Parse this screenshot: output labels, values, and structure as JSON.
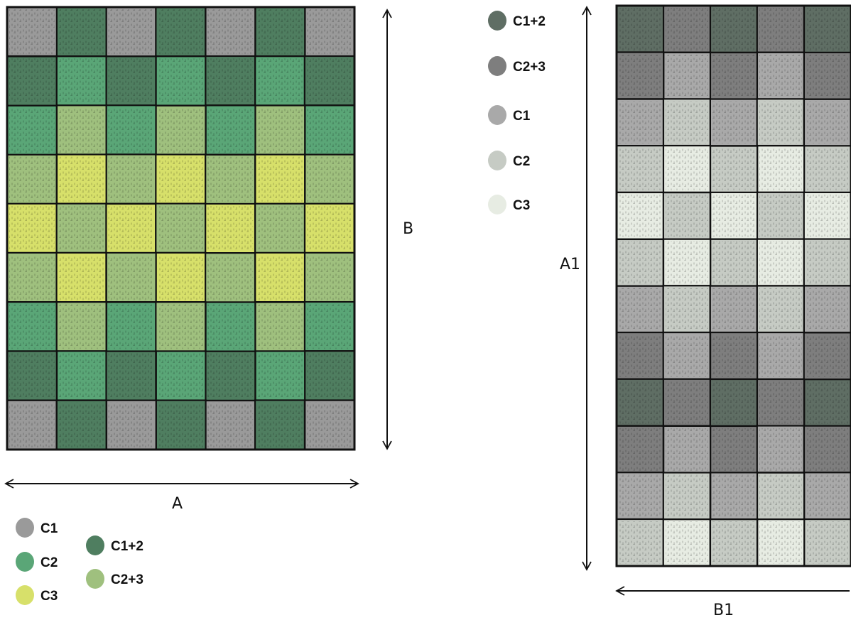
{
  "colors": {
    "C1": "#9a9a9a",
    "C2": "#5aa677",
    "C3": "#d7e06a",
    "C1+2": "#4f7e60",
    "C2+3": "#9fc07e",
    "g_C1+2": "#5f6e64",
    "g_C2+3": "#7e7e7e",
    "g_C1": "#a9a9a9",
    "g_C2": "#c6cbc4",
    "g_C3": "#e7ece3"
  },
  "quilt_a": {
    "rows": [
      [
        "C1",
        "C1+2",
        "C1",
        "C1+2",
        "C1",
        "C1+2",
        "C1"
      ],
      [
        "C1+2",
        "C2",
        "C1+2",
        "C2",
        "C1+2",
        "C2",
        "C1+2"
      ],
      [
        "C2",
        "C2+3",
        "C2",
        "C2+3",
        "C2",
        "C2+3",
        "C2"
      ],
      [
        "C2+3",
        "C3",
        "C2+3",
        "C3",
        "C2+3",
        "C3",
        "C2+3"
      ],
      [
        "C3",
        "C2+3",
        "C3",
        "C2+3",
        "C3",
        "C2+3",
        "C3"
      ],
      [
        "C2+3",
        "C3",
        "C2+3",
        "C3",
        "C2+3",
        "C3",
        "C2+3"
      ],
      [
        "C2",
        "C2+3",
        "C2",
        "C2+3",
        "C2",
        "C2+3",
        "C2"
      ],
      [
        "C1+2",
        "C2",
        "C1+2",
        "C2",
        "C1+2",
        "C2",
        "C1+2"
      ],
      [
        "C1",
        "C1+2",
        "C1",
        "C1+2",
        "C1",
        "C1+2",
        "C1"
      ]
    ],
    "width_label": "A",
    "height_label": "B"
  },
  "legend_a": [
    {
      "label": "C1",
      "color_key": "C1"
    },
    {
      "label": "C2",
      "color_key": "C2"
    },
    {
      "label": "C3",
      "color_key": "C3"
    },
    {
      "label": "C1+2",
      "color_key": "C1+2"
    },
    {
      "label": "C2+3",
      "color_key": "C2+3"
    }
  ],
  "quilt_b": {
    "rows": [
      [
        "g_C1+2",
        "g_C2+3",
        "g_C1+2",
        "g_C2+3",
        "g_C1+2"
      ],
      [
        "g_C2+3",
        "g_C1",
        "g_C2+3",
        "g_C1",
        "g_C2+3"
      ],
      [
        "g_C1",
        "g_C2",
        "g_C1",
        "g_C2",
        "g_C1"
      ],
      [
        "g_C2",
        "g_C3",
        "g_C2",
        "g_C3",
        "g_C2"
      ],
      [
        "g_C3",
        "g_C2",
        "g_C3",
        "g_C2",
        "g_C3"
      ],
      [
        "g_C2",
        "g_C3",
        "g_C2",
        "g_C3",
        "g_C2"
      ],
      [
        "g_C1",
        "g_C2",
        "g_C1",
        "g_C2",
        "g_C1"
      ],
      [
        "g_C2+3",
        "g_C1",
        "g_C2+3",
        "g_C1",
        "g_C2+3"
      ],
      [
        "g_C1+2",
        "g_C2+3",
        "g_C1+2",
        "g_C2+3",
        "g_C1+2"
      ],
      [
        "g_C2+3",
        "g_C1",
        "g_C2+3",
        "g_C1",
        "g_C2+3"
      ],
      [
        "g_C1",
        "g_C2",
        "g_C1",
        "g_C2",
        "g_C1"
      ],
      [
        "g_C2",
        "g_C3",
        "g_C2",
        "g_C3",
        "g_C2"
      ]
    ],
    "width_label": "B1",
    "height_label": "A1"
  },
  "legend_b": [
    {
      "label": "C1+2",
      "color_key": "g_C1+2"
    },
    {
      "label": "C2+3",
      "color_key": "g_C2+3"
    },
    {
      "label": "C1",
      "color_key": "g_C1"
    },
    {
      "label": "C2",
      "color_key": "g_C2"
    },
    {
      "label": "C3",
      "color_key": "g_C3"
    }
  ]
}
